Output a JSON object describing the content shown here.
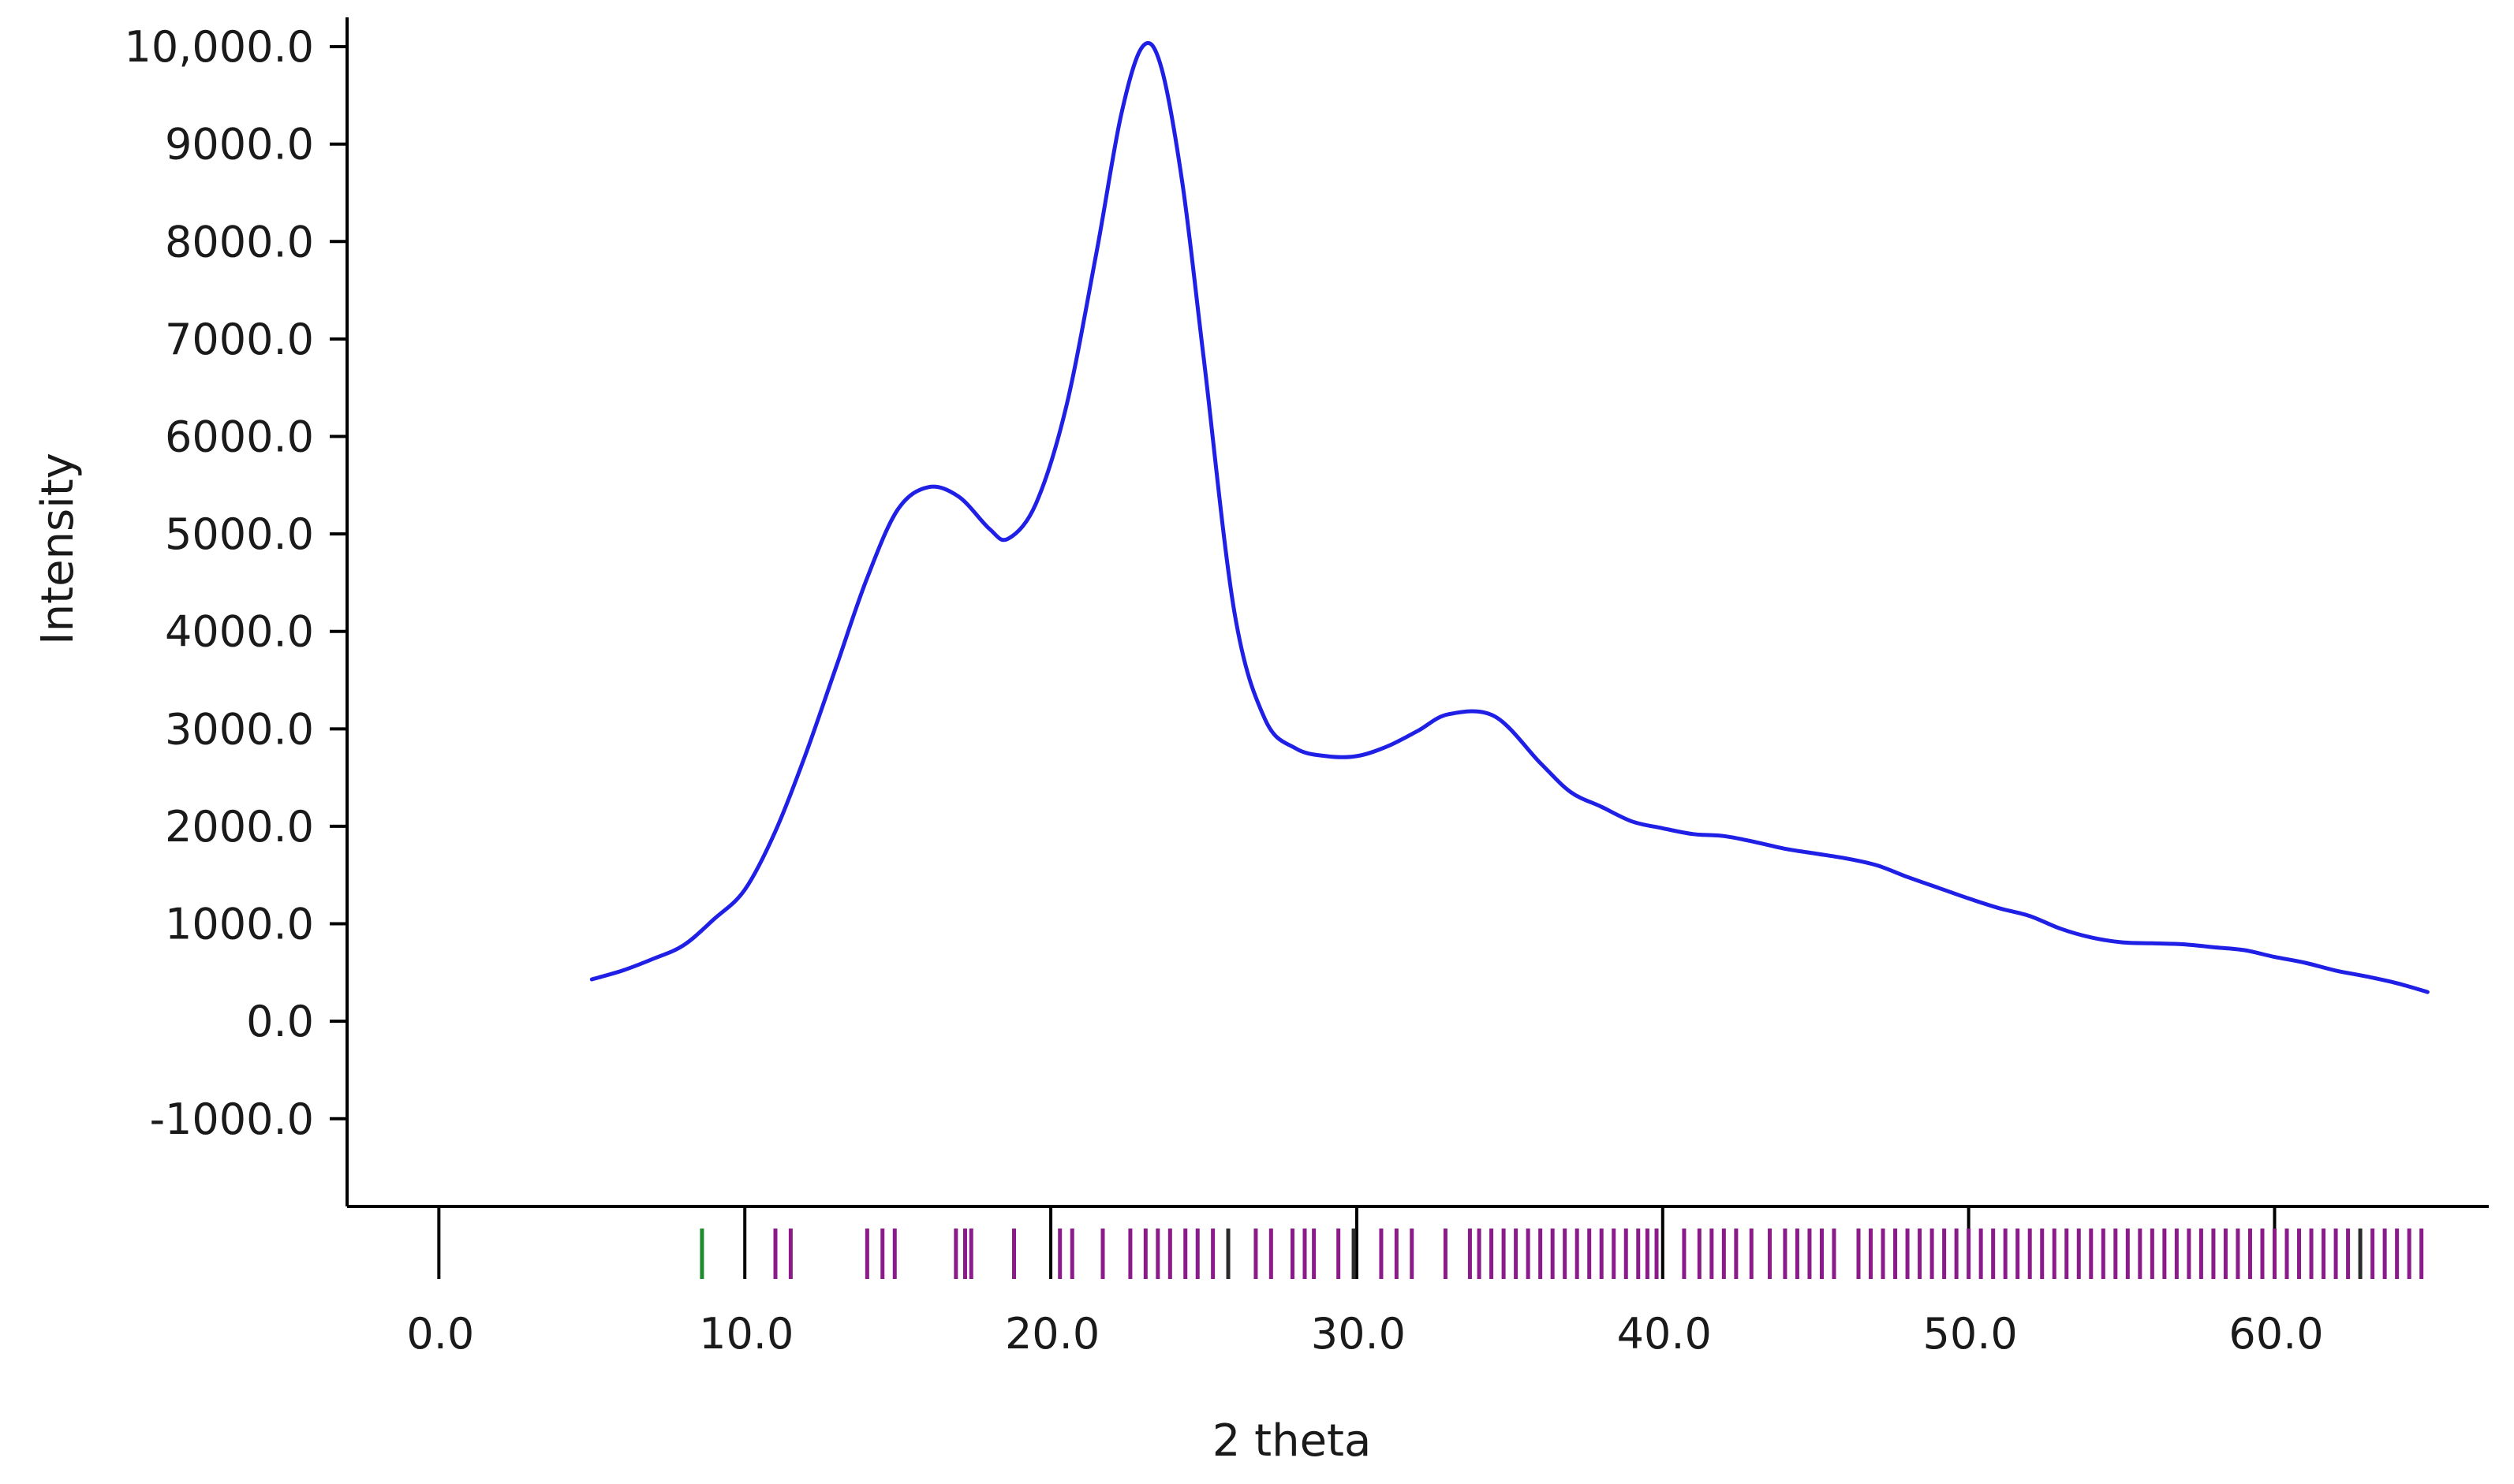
{
  "chart_data": {
    "type": "line",
    "title": "",
    "xlabel": "2 theta",
    "ylabel": "Intensity",
    "xlim": [
      -3,
      67
    ],
    "ylim": [
      -1900,
      10300
    ],
    "x_ticks": [
      0,
      10,
      20,
      30,
      40,
      50,
      60
    ],
    "x_tick_labels": [
      "0.0",
      "10.0",
      "20.0",
      "30.0",
      "40.0",
      "50.0",
      "60.0"
    ],
    "y_ticks": [
      10000,
      9000,
      8000,
      7000,
      6000,
      5000,
      4000,
      3000,
      2000,
      1000,
      0,
      -1000
    ],
    "y_tick_labels": [
      "10,000.0",
      "9000.0",
      "8000.0",
      "7000.0",
      "6000.0",
      "5000.0",
      "4000.0",
      "3000.0",
      "2000.0",
      "1000.0",
      "0.0",
      "-1000.0"
    ],
    "grid": false,
    "colors": {
      "line": "#1f1fe6",
      "reflection_primary": "#8b1a8b",
      "reflection_green": "#1e8c2e",
      "reflection_dark": "#2b2b2b",
      "axis": "#000000"
    },
    "series": [
      {
        "x": [
          5,
          6,
          7,
          8,
          9,
          10,
          11,
          12,
          13,
          14,
          15,
          16,
          17,
          18,
          18.6,
          19.5,
          20.5,
          21.5,
          22.3,
          23,
          23.6,
          24.3,
          25,
          26,
          27,
          28,
          29,
          30,
          31,
          32,
          33,
          34.5,
          36,
          37,
          38,
          39,
          40,
          41,
          42,
          43,
          44,
          45,
          46,
          47,
          48,
          49,
          50,
          51,
          52,
          53,
          54,
          55,
          56,
          57,
          58,
          59,
          60,
          61,
          62,
          63,
          64,
          65
        ],
        "values": [
          430,
          520,
          640,
          780,
          1050,
          1350,
          1950,
          2750,
          3650,
          4550,
          5250,
          5480,
          5380,
          5050,
          4950,
          5300,
          6300,
          7900,
          9300,
          10000,
          9800,
          8600,
          6800,
          4200,
          3100,
          2800,
          2720,
          2720,
          2820,
          2980,
          3150,
          3130,
          2650,
          2350,
          2200,
          2050,
          1980,
          1920,
          1900,
          1840,
          1770,
          1720,
          1670,
          1600,
          1480,
          1370,
          1260,
          1160,
          1080,
          950,
          860,
          810,
          800,
          790,
          760,
          730,
          660,
          600,
          520,
          460,
          390,
          300
        ]
      }
    ],
    "reflections": [
      {
        "x": 8.6,
        "color": "green"
      },
      {
        "x": 11.0
      },
      {
        "x": 11.5
      },
      {
        "x": 14.0
      },
      {
        "x": 14.5
      },
      {
        "x": 14.9
      },
      {
        "x": 16.9
      },
      {
        "x": 17.2
      },
      {
        "x": 17.4
      },
      {
        "x": 18.8
      },
      {
        "x": 20.3
      },
      {
        "x": 20.7
      },
      {
        "x": 21.7
      },
      {
        "x": 22.6
      },
      {
        "x": 23.1
      },
      {
        "x": 23.5
      },
      {
        "x": 23.9
      },
      {
        "x": 24.4
      },
      {
        "x": 24.8
      },
      {
        "x": 25.3
      },
      {
        "x": 25.8,
        "color": "dark"
      },
      {
        "x": 26.7
      },
      {
        "x": 27.2
      },
      {
        "x": 27.9
      },
      {
        "x": 28.3
      },
      {
        "x": 28.6
      },
      {
        "x": 29.4
      },
      {
        "x": 29.9,
        "color": "dark"
      },
      {
        "x": 30.8
      },
      {
        "x": 31.3
      },
      {
        "x": 31.8
      },
      {
        "x": 32.9
      },
      {
        "x": 33.7
      },
      {
        "x": 34.0
      },
      {
        "x": 34.4
      },
      {
        "x": 34.8
      },
      {
        "x": 35.2
      },
      {
        "x": 35.6
      },
      {
        "x": 36.0
      },
      {
        "x": 36.4
      },
      {
        "x": 36.8
      },
      {
        "x": 37.2
      },
      {
        "x": 37.6
      },
      {
        "x": 38.0
      },
      {
        "x": 38.4
      },
      {
        "x": 38.8
      },
      {
        "x": 39.2
      },
      {
        "x": 39.5
      },
      {
        "x": 39.8
      },
      {
        "x": 40.7
      },
      {
        "x": 41.2
      },
      {
        "x": 41.6
      },
      {
        "x": 42.0
      },
      {
        "x": 42.4
      },
      {
        "x": 42.9
      },
      {
        "x": 43.5
      },
      {
        "x": 44.0
      },
      {
        "x": 44.4
      },
      {
        "x": 44.8
      },
      {
        "x": 45.2
      },
      {
        "x": 45.6
      },
      {
        "x": 46.4
      },
      {
        "x": 46.8
      },
      {
        "x": 47.2
      },
      {
        "x": 47.6
      },
      {
        "x": 48.0
      },
      {
        "x": 48.4
      },
      {
        "x": 48.8
      },
      {
        "x": 49.2
      },
      {
        "x": 49.6
      },
      {
        "x": 50.0
      },
      {
        "x": 50.4
      },
      {
        "x": 50.8
      },
      {
        "x": 51.2
      },
      {
        "x": 51.6
      },
      {
        "x": 52.0
      },
      {
        "x": 52.4
      },
      {
        "x": 52.8
      },
      {
        "x": 53.2
      },
      {
        "x": 53.6
      },
      {
        "x": 54.0
      },
      {
        "x": 54.4
      },
      {
        "x": 54.8
      },
      {
        "x": 55.2
      },
      {
        "x": 55.6
      },
      {
        "x": 56.0
      },
      {
        "x": 56.4
      },
      {
        "x": 56.8
      },
      {
        "x": 57.2
      },
      {
        "x": 57.6
      },
      {
        "x": 58.0
      },
      {
        "x": 58.4
      },
      {
        "x": 58.8
      },
      {
        "x": 59.2
      },
      {
        "x": 59.6
      },
      {
        "x": 60.0
      },
      {
        "x": 60.4
      },
      {
        "x": 60.8
      },
      {
        "x": 61.2
      },
      {
        "x": 61.6
      },
      {
        "x": 62.0
      },
      {
        "x": 62.4
      },
      {
        "x": 62.8,
        "color": "dark"
      },
      {
        "x": 63.2
      },
      {
        "x": 63.6
      },
      {
        "x": 64.0
      },
      {
        "x": 64.4
      },
      {
        "x": 64.8
      }
    ]
  }
}
